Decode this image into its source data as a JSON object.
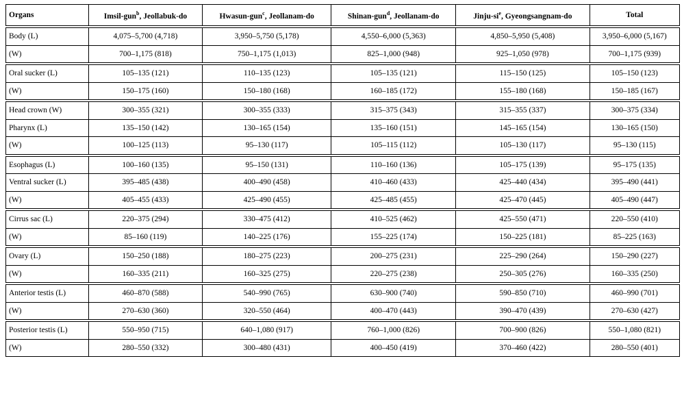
{
  "header": [
    "Organs",
    {
      "name": "Imsil-gun",
      "sup": "b",
      "region": ", Jeollabuk-do"
    },
    {
      "name": "Hwasun-gun",
      "sup": "c",
      "region": ", Jeollanam-do"
    },
    {
      "name": "Shinan-gun",
      "sup": "d",
      "region": ", Jeollanam-do"
    },
    {
      "name": "Jinju-si",
      "sup": "e",
      "region": ", Gyeongsangnam-do"
    },
    "Total"
  ],
  "groups": [
    [
      [
        "Body (L)",
        "4,075–5,700 (4,718)",
        "3,950–5,750 (5,178)",
        "4,550–6,000 (5,363)",
        "4,850–5,950 (5,408)",
        "3,950–6,000 (5,167)"
      ],
      [
        "(W)",
        "700–1,175 (818)",
        "750–1,175 (1,013)",
        "825–1,000 (948)",
        "925–1,050 (978)",
        "700–1,175 (939)"
      ]
    ],
    [
      [
        "Oral sucker (L)",
        "105–135 (121)",
        "110–135 (123)",
        "105–135 (121)",
        "115–150 (125)",
        "105–150 (123)"
      ],
      [
        "(W)",
        "150–175 (160)",
        "150–180 (168)",
        "160–185 (172)",
        "155–180 (168)",
        "150–185 (167)"
      ]
    ],
    [
      [
        "Head crown (W)",
        "300–355 (321)",
        "300–355 (333)",
        "315–375 (343)",
        "315–355 (337)",
        "300–375 (334)"
      ],
      [
        "Pharynx (L)",
        "135–150 (142)",
        "130–165 (154)",
        "135–160 (151)",
        "145–165 (154)",
        "130–165 (150)"
      ],
      [
        "(W)",
        "100–125 (113)",
        "95–130 (117)",
        "105–115 (112)",
        "105–130 (117)",
        "95–130 (115)"
      ]
    ],
    [
      [
        "Esophagus (L)",
        "100–160 (135)",
        "95–150 (131)",
        "110–160 (136)",
        "105–175 (139)",
        "95–175 (135)"
      ],
      [
        "Ventral sucker (L)",
        "395–485 (438)",
        "400–490 (458)",
        "410–460 (433)",
        "425–440 (434)",
        "395–490 (441)"
      ],
      [
        "(W)",
        "405–455 (433)",
        "425–490 (455)",
        "425–485 (455)",
        "425–470 (445)",
        "405–490 (447)"
      ]
    ],
    [
      [
        "Cirrus sac (L)",
        "220–375 (294)",
        "330–475 (412)",
        "410–525 (462)",
        "425–550 (471)",
        "220–550 (410)"
      ],
      [
        "(W)",
        "85–160 (119)",
        "140–225 (176)",
        "155–225 (174)",
        "150–225 (181)",
        "85–225 (163)"
      ]
    ],
    [
      [
        "Ovary (L)",
        "150–250 (188)",
        "180–275 (223)",
        "200–275 (231)",
        "225–290 (264)",
        "150–290 (227)"
      ],
      [
        "(W)",
        "160–335 (211)",
        "160–325 (275)",
        "220–275 (238)",
        "250–305 (276)",
        "160–335 (250)"
      ]
    ],
    [
      [
        "Anterior testis (L)",
        "460–870 (588)",
        "540–990 (765)",
        "630–900 (740)",
        "590–850 (710)",
        "460–990 (701)"
      ],
      [
        "(W)",
        "270–630 (360)",
        "320–550 (464)",
        "400–470 (443)",
        "390–470 (439)",
        "270–630 (427)"
      ]
    ],
    [
      [
        "Posterior testis (L)",
        "550–950 (715)",
        "640–1,080 (917)",
        "760–1,000 (826)",
        "700–900 (826)",
        "550–1,080 (821)"
      ],
      [
        "(W)",
        "280–550 (332)",
        "300–480 (431)",
        "400–450 (419)",
        "370–460 (422)",
        "280–550 (401)"
      ]
    ]
  ]
}
